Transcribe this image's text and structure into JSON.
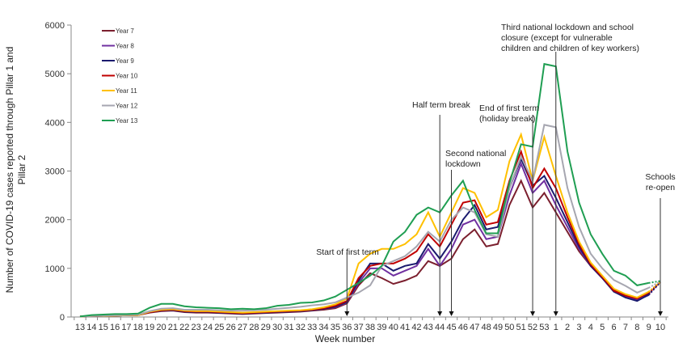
{
  "chart_data": {
    "type": "line",
    "title": "",
    "xlabel": "Week number",
    "ylabel": "Number of COVID-19 cases reported through Pillar 1 and Pillar 2",
    "ylim": [
      0,
      6000
    ],
    "yticks": [
      0,
      1000,
      2000,
      3000,
      4000,
      5000,
      6000
    ],
    "grid": false,
    "legend_position": "top-left",
    "x": [
      "13",
      "14",
      "15",
      "16",
      "17",
      "18",
      "19",
      "20",
      "21",
      "22",
      "23",
      "24",
      "25",
      "26",
      "27",
      "28",
      "29",
      "30",
      "31",
      "32",
      "33",
      "34",
      "35",
      "36",
      "37",
      "38",
      "39",
      "40",
      "41",
      "42",
      "43",
      "44",
      "45",
      "46",
      "47",
      "48",
      "49",
      "50",
      "51",
      "52",
      "53",
      "1",
      "2",
      "3",
      "4",
      "5",
      "6",
      "7",
      "8",
      "9",
      "10"
    ],
    "series": [
      {
        "name": "Year 7",
        "color": "#7b1f2e",
        "values": [
          10,
          20,
          25,
          30,
          35,
          40,
          90,
          120,
          130,
          100,
          90,
          90,
          80,
          70,
          60,
          70,
          80,
          90,
          100,
          110,
          130,
          150,
          180,
          280,
          650,
          900,
          800,
          680,
          750,
          850,
          1150,
          1050,
          1200,
          1600,
          1800,
          1450,
          1500,
          2300,
          2800,
          2250,
          2550,
          2150,
          1750,
          1350,
          1050,
          800,
          550,
          450,
          380,
          480,
          null
        ]
      },
      {
        "name": "Year 8",
        "color": "#7030a0",
        "values": [
          10,
          20,
          25,
          30,
          35,
          40,
          100,
          130,
          140,
          110,
          100,
          100,
          90,
          80,
          70,
          80,
          90,
          100,
          110,
          120,
          140,
          170,
          200,
          300,
          700,
          1000,
          1000,
          850,
          950,
          1050,
          1400,
          1050,
          1400,
          1900,
          2000,
          1600,
          1650,
          2500,
          3150,
          2550,
          2800,
          2300,
          1850,
          1400,
          1050,
          800,
          520,
          420,
          350,
          450,
          null
        ]
      },
      {
        "name": "Year 9",
        "color": "#1a1a6e",
        "values": [
          10,
          20,
          25,
          30,
          35,
          40,
          100,
          130,
          140,
          110,
          100,
          100,
          90,
          80,
          70,
          80,
          90,
          100,
          110,
          120,
          140,
          170,
          210,
          310,
          750,
          1100,
          1100,
          950,
          1050,
          1100,
          1500,
          1200,
          1550,
          2000,
          2300,
          1800,
          1850,
          2650,
          3250,
          2700,
          2900,
          2450,
          1950,
          1450,
          1050,
          800,
          520,
          400,
          330,
          460,
          null
        ]
      },
      {
        "name": "Year 10",
        "color": "#c00000",
        "values": [
          10,
          20,
          25,
          30,
          35,
          40,
          100,
          140,
          150,
          120,
          110,
          110,
          100,
          90,
          80,
          90,
          100,
          110,
          120,
          130,
          150,
          180,
          230,
          330,
          800,
          1050,
          1100,
          1100,
          1200,
          1350,
          1700,
          1450,
          1900,
          2350,
          2400,
          1900,
          1950,
          2800,
          3400,
          2650,
          3050,
          2650,
          2050,
          1500,
          1080,
          820,
          540,
          440,
          380,
          500,
          null
        ]
      },
      {
        "name": "Year 11",
        "color": "#ffc000",
        "values": [
          10,
          20,
          25,
          30,
          35,
          40,
          110,
          150,
          160,
          130,
          120,
          120,
          110,
          100,
          90,
          100,
          110,
          120,
          130,
          140,
          160,
          200,
          260,
          380,
          1100,
          1300,
          1400,
          1400,
          1500,
          1700,
          2150,
          1650,
          2150,
          2650,
          2550,
          2050,
          2200,
          3200,
          3750,
          2800,
          3700,
          2900,
          2150,
          1550,
          1120,
          850,
          580,
          470,
          400,
          520,
          null
        ]
      },
      {
        "name": "Year 12",
        "color": "#a6a6b0",
        "values": [
          10,
          20,
          30,
          35,
          40,
          50,
          120,
          170,
          180,
          150,
          150,
          150,
          140,
          130,
          130,
          140,
          150,
          170,
          190,
          210,
          240,
          260,
          300,
          400,
          500,
          650,
          1050,
          1150,
          1250,
          1450,
          1750,
          1550,
          2000,
          2250,
          2150,
          1700,
          1650,
          2650,
          3300,
          2800,
          3950,
          3900,
          2650,
          1850,
          1300,
          1000,
          760,
          640,
          500,
          600,
          null
        ]
      },
      {
        "name": "Year 13",
        "color": "#1f9e52",
        "values": [
          10,
          40,
          50,
          60,
          60,
          70,
          190,
          270,
          270,
          220,
          200,
          190,
          180,
          160,
          170,
          160,
          180,
          230,
          250,
          290,
          300,
          340,
          420,
          560,
          700,
          850,
          1050,
          1550,
          1750,
          2100,
          2250,
          2150,
          2500,
          2800,
          2200,
          1720,
          1720,
          2750,
          3550,
          3500,
          5200,
          5150,
          3400,
          2350,
          1700,
          1300,
          950,
          850,
          650,
          700,
          null
        ]
      }
    ],
    "projection_to_last_week": true,
    "annotations": [
      {
        "text": "Start of first term",
        "x": "36"
      },
      {
        "text": "Half term break",
        "x": "44"
      },
      {
        "text": "Second national lockdown",
        "x": "45"
      },
      {
        "text": "End of first term (holiday break)",
        "x": "52"
      },
      {
        "text": "Third national lockdown and school closure (except for vulnerable children and children of key workers)",
        "x": "1"
      },
      {
        "text": "Schools re-open",
        "x": "10"
      }
    ]
  },
  "labels": {
    "ylabel_line1": "Number of COVID-19 cases reported through Pillar 1 and",
    "ylabel_line2": "Pillar 2",
    "xlabel": "Week number",
    "annot_start": [
      "Start of first term"
    ],
    "annot_half": [
      "Half term break"
    ],
    "annot_second": [
      "Second national",
      "lockdown"
    ],
    "annot_end": [
      "End of first term",
      "(holiday break)"
    ],
    "annot_third": [
      "Third national lockdown and school",
      "closure (except for vulnerable",
      "children and children of key workers)"
    ],
    "annot_reopen": [
      "Schools",
      "re-open"
    ]
  }
}
